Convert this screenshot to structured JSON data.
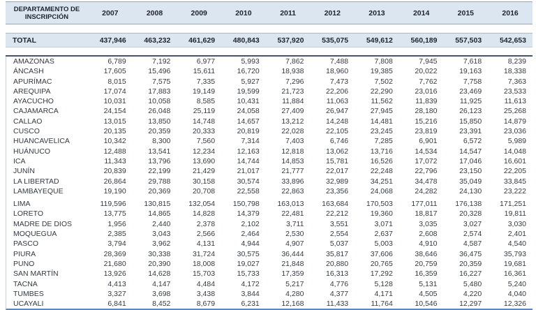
{
  "chart_data": {
    "type": "table",
    "row_header": "DEPARTAMENTO DE INSCRIPCIÓN",
    "columns": [
      "2007",
      "2008",
      "2009",
      "2010",
      "2011",
      "2012",
      "2013",
      "2014",
      "2015",
      "2016"
    ],
    "total": {
      "label": "TOTAL",
      "values": [
        "437,946",
        "463,232",
        "461,629",
        "480,843",
        "537,920",
        "535,075",
        "549,612",
        "560,189",
        "557,503",
        "542,653"
      ]
    },
    "groups": [
      {
        "rows": [
          {
            "name": "AMAZONAS",
            "values": [
              "6,789",
              "7,192",
              "6,977",
              "5,993",
              "7,862",
              "7,488",
              "7,808",
              "7,945",
              "7,618",
              "8,239"
            ]
          },
          {
            "name": "ÁNCASH",
            "values": [
              "17,605",
              "15,496",
              "15,611",
              "16,720",
              "18,938",
              "18,960",
              "19,385",
              "20,022",
              "19,163",
              "18,338"
            ]
          },
          {
            "name": "APURÍMAC",
            "values": [
              "8,015",
              "7,575",
              "7,335",
              "5,927",
              "7,296",
              "7,473",
              "7,502",
              "7,762",
              "7,758",
              "7,363"
            ]
          },
          {
            "name": "AREQUIPA",
            "values": [
              "17,074",
              "17,883",
              "19,149",
              "19,599",
              "21,723",
              "22,206",
              "22,290",
              "23,016",
              "23,469",
              "23,533"
            ]
          },
          {
            "name": "AYACUCHO",
            "values": [
              "10,031",
              "10,058",
              "8,585",
              "10,431",
              "11,884",
              "11,063",
              "11,562",
              "11,839",
              "11,925",
              "11,613"
            ]
          },
          {
            "name": "CAJAMARCA",
            "values": [
              "24,154",
              "26,048",
              "25,119",
              "24,058",
              "27,409",
              "26,947",
              "27,945",
              "28,180",
              "26,123",
              "25,268"
            ]
          },
          {
            "name": "CALLAO",
            "values": [
              "13,015",
              "13,850",
              "14,748",
              "14,657",
              "13,212",
              "14,248",
              "14,481",
              "15,216",
              "15,850",
              "14,879"
            ]
          },
          {
            "name": "CUSCO",
            "values": [
              "20,135",
              "20,359",
              "20,333",
              "20,819",
              "22,028",
              "22,105",
              "23,245",
              "23,819",
              "23,391",
              "23,036"
            ]
          },
          {
            "name": "HUANCAVELICA",
            "values": [
              "10,342",
              "8,300",
              "7,560",
              "7,314",
              "7,403",
              "6,746",
              "7,285",
              "6,901",
              "6,572",
              "5,989"
            ]
          },
          {
            "name": "HUÁNUCO",
            "values": [
              "12,488",
              "13,541",
              "12,234",
              "12,163",
              "12,818",
              "13,062",
              "13,716",
              "14,534",
              "14,547",
              "14,048"
            ]
          },
          {
            "name": "ICA",
            "values": [
              "11,343",
              "13,796",
              "13,690",
              "14,744",
              "14,853",
              "15,781",
              "16,526",
              "17,072",
              "17,046",
              "16,601"
            ]
          },
          {
            "name": "JUNÍN",
            "values": [
              "20,839",
              "22,199",
              "21,429",
              "21,017",
              "21,777",
              "22,017",
              "22,248",
              "22,796",
              "23,150",
              "22,205"
            ]
          },
          {
            "name": "LA LIBERTAD",
            "values": [
              "26,864",
              "29,788",
              "30,158",
              "30,574",
              "33,896",
              "32,989",
              "34,251",
              "34,478",
              "35,049",
              "33,845"
            ]
          },
          {
            "name": "LAMBAYEQUE",
            "values": [
              "19,190",
              "20,369",
              "20,708",
              "22,558",
              "22,863",
              "23,356",
              "24,068",
              "24,282",
              "24,130",
              "23,222"
            ]
          }
        ]
      },
      {
        "rows": [
          {
            "name": "LIMA",
            "values": [
              "119,596",
              "130,815",
              "132,054",
              "150,798",
              "163,013",
              "163,684",
              "170,503",
              "177,011",
              "176,138",
              "171,251"
            ]
          },
          {
            "name": "LORETO",
            "values": [
              "13,775",
              "14,865",
              "14,828",
              "14,379",
              "22,481",
              "22,212",
              "19,360",
              "18,817",
              "20,328",
              "19,811"
            ]
          },
          {
            "name": "MADRE DE DIOS",
            "values": [
              "1,956",
              "2,440",
              "2,378",
              "2,102",
              "3,711",
              "3,551",
              "3,071",
              "3,035",
              "3,027",
              "3,030"
            ]
          },
          {
            "name": "MOQUEGUA",
            "values": [
              "2,385",
              "3,043",
              "2,566",
              "2,464",
              "2,530",
              "2,554",
              "2,637",
              "2,608",
              "2,574",
              "2,401"
            ]
          },
          {
            "name": "PASCO",
            "values": [
              "3,794",
              "3,962",
              "4,131",
              "4,944",
              "4,907",
              "5,037",
              "5,003",
              "4,910",
              "4,587",
              "4,540"
            ]
          },
          {
            "name": "PIURA",
            "values": [
              "28,369",
              "30,338",
              "31,724",
              "30,575",
              "36,444",
              "35,817",
              "37,606",
              "38,646",
              "36,475",
              "35,793"
            ]
          },
          {
            "name": "PUNO",
            "values": [
              "21,680",
              "20,390",
              "18,008",
              "19,027",
              "21,848",
              "20,880",
              "20,765",
              "20,759",
              "20,359",
              "19,681"
            ]
          },
          {
            "name": "SAN MARTÍN",
            "values": [
              "13,926",
              "14,628",
              "15,703",
              "15,733",
              "17,359",
              "16,313",
              "17,292",
              "16,359",
              "16,227",
              "16,361"
            ]
          },
          {
            "name": "TACNA",
            "values": [
              "4,413",
              "4,147",
              "4,484",
              "4,172",
              "5,217",
              "4,776",
              "5,128",
              "5,131",
              "5,480",
              "5,240"
            ]
          },
          {
            "name": "TUMBES",
            "values": [
              "3,327",
              "3,698",
              "3,438",
              "3,844",
              "4,280",
              "4,377",
              "4,171",
              "4,505",
              "4,220",
              "4,040"
            ]
          },
          {
            "name": "UCAYALI",
            "values": [
              "6,841",
              "8,452",
              "8,679",
              "6,231",
              "12,168",
              "11,433",
              "11,764",
              "10,546",
              "12,297",
              "12,326"
            ]
          }
        ]
      }
    ]
  },
  "colors": {
    "band_bg": "#dce6f1",
    "rule_gray": "#9aa5ae",
    "rule_dark": "#44546a",
    "rule_blue": "#5b87bb",
    "left_rule": "#c9ced4"
  }
}
